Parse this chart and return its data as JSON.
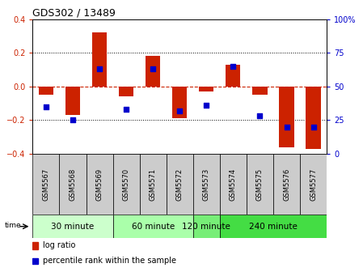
{
  "title": "GDS302 / 13489",
  "samples": [
    "GSM5567",
    "GSM5568",
    "GSM5569",
    "GSM5570",
    "GSM5571",
    "GSM5572",
    "GSM5573",
    "GSM5574",
    "GSM5575",
    "GSM5576",
    "GSM5577"
  ],
  "log_ratio": [
    -0.05,
    -0.17,
    0.32,
    -0.06,
    0.18,
    -0.19,
    -0.03,
    0.13,
    -0.05,
    -0.36,
    -0.37
  ],
  "percentile": [
    35,
    25,
    63,
    33,
    63,
    32,
    36,
    65,
    28,
    20,
    20
  ],
  "groups": [
    {
      "label": "30 minute",
      "start": 0,
      "end": 3,
      "color": "#ccffcc"
    },
    {
      "label": "60 minute",
      "start": 3,
      "end": 6,
      "color": "#aaffaa"
    },
    {
      "label": "120 minute",
      "start": 6,
      "end": 7,
      "color": "#77ee77"
    },
    {
      "label": "240 minute",
      "start": 7,
      "end": 11,
      "color": "#44dd44"
    }
  ],
  "ylim": [
    -0.4,
    0.4
  ],
  "yticks_left": [
    -0.4,
    -0.2,
    0.0,
    0.2,
    0.4
  ],
  "yticks_right": [
    0,
    25,
    50,
    75,
    100
  ],
  "right_labels": [
    "0",
    "25",
    "50",
    "75",
    "100%"
  ],
  "bar_color": "#cc2200",
  "dot_color": "#0000cc",
  "zero_line_color": "#cc2200",
  "bar_width": 0.55,
  "dot_size": 22,
  "sample_cell_color": "#cccccc",
  "title_fontsize": 9,
  "tick_fontsize": 7,
  "legend_fontsize": 7,
  "group_fontsize": 7.5
}
